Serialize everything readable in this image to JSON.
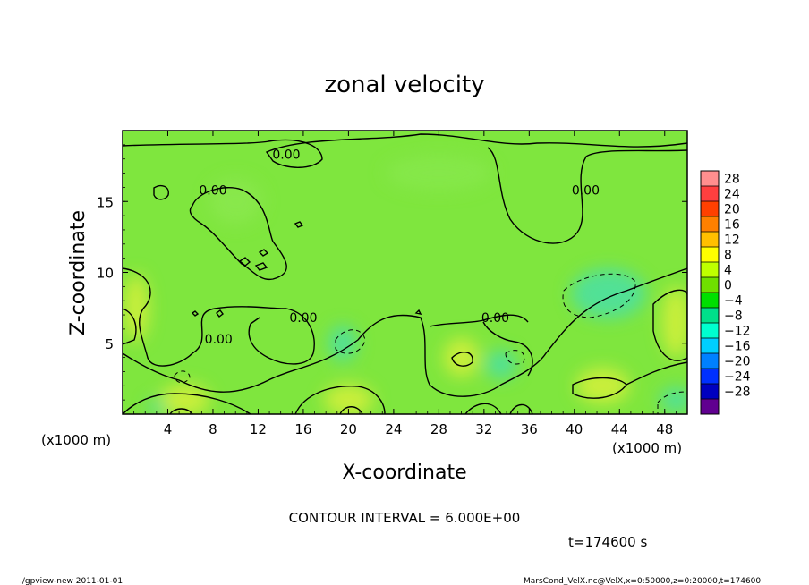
{
  "chart_data": {
    "type": "heatmap",
    "title": "zonal velocity",
    "xlabel": "X-coordinate",
    "ylabel": "Z-coordinate",
    "x_unit_left": "(x1000 m)",
    "x_unit_right": "(x1000 m)",
    "xlim": [
      0,
      50
    ],
    "ylim": [
      0,
      20
    ],
    "x_ticks": [
      {
        "value": 4,
        "label": "4"
      },
      {
        "value": 8,
        "label": "8"
      },
      {
        "value": 12,
        "label": "12"
      },
      {
        "value": 16,
        "label": "16"
      },
      {
        "value": 20,
        "label": "20"
      },
      {
        "value": 24,
        "label": "24"
      },
      {
        "value": 28,
        "label": "28"
      },
      {
        "value": 32,
        "label": "32"
      },
      {
        "value": 36,
        "label": "36"
      },
      {
        "value": 40,
        "label": "40"
      },
      {
        "value": 44,
        "label": "44"
      },
      {
        "value": 48,
        "label": "48"
      }
    ],
    "y_ticks": [
      {
        "value": 5,
        "label": "5"
      },
      {
        "value": 10,
        "label": "10"
      },
      {
        "value": 15,
        "label": "15"
      }
    ],
    "contour_interval_text": "CONTOUR INTERVAL = 6.000E+00",
    "time_text": "t=174600 s",
    "contour_labels": [
      {
        "x": 14.5,
        "z": 18.0,
        "text": "0.00"
      },
      {
        "x": 8.0,
        "z": 15.5,
        "text": "0.00"
      },
      {
        "x": 41.0,
        "z": 15.5,
        "text": "0.00"
      },
      {
        "x": 16.0,
        "z": 6.5,
        "text": "0.00"
      },
      {
        "x": 8.5,
        "z": 5.0,
        "text": "0.00"
      },
      {
        "x": 33.0,
        "z": 6.5,
        "text": "0.00"
      }
    ],
    "colorbar": {
      "ticks": [
        28,
        24,
        20,
        16,
        12,
        8,
        4,
        0,
        -4,
        -8,
        -12,
        -16,
        -20,
        -24,
        -28
      ],
      "tick_labels": [
        "28",
        "24",
        "20",
        "16",
        "12",
        "8",
        "4",
        "0",
        "−4",
        "−8",
        "−12",
        "−16",
        "−20",
        "−24",
        "−28"
      ],
      "colors": [
        "#ff8f8f",
        "#ff3f3f",
        "#ff4000",
        "#ff8000",
        "#ffbf00",
        "#ffff00",
        "#bfff00",
        "#6fe000",
        "#00e000",
        "#00e08a",
        "#00ffd0",
        "#00cfff",
        "#0080ff",
        "#0030ff",
        "#0000c0",
        "#600090"
      ]
    },
    "colors": {
      "background_field": "#7fe63e",
      "positive_patch": "#d2f03a",
      "negative_patch": "#4de0a0"
    }
  },
  "footer": {
    "left": "./gpview-new   2011-01-01",
    "right": "MarsCond_VelX.nc@VelX,x=0:50000,z=0:20000,t=174600"
  }
}
